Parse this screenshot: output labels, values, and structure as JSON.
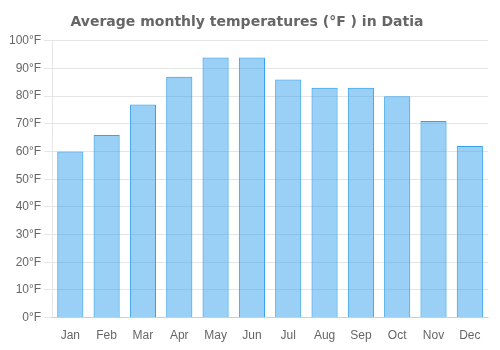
{
  "chart_data": {
    "type": "bar",
    "title": "Average monthly temperatures (°F ) in Datia",
    "categories": [
      "Jan",
      "Feb",
      "Mar",
      "Apr",
      "May",
      "Jun",
      "Jul",
      "Aug",
      "Sep",
      "Oct",
      "Nov",
      "Dec"
    ],
    "values": [
      60,
      66,
      77,
      87,
      94,
      94,
      86,
      83,
      83,
      80,
      71,
      62
    ],
    "ylim": [
      0,
      100
    ],
    "yticks": [
      {
        "value": 0,
        "label": "0°F"
      },
      {
        "value": 10,
        "label": "10°F"
      },
      {
        "value": 20,
        "label": "20°F"
      },
      {
        "value": 30,
        "label": "30°F"
      },
      {
        "value": 40,
        "label": "40°F"
      },
      {
        "value": 50,
        "label": "50°F"
      },
      {
        "value": 60,
        "label": "60°F"
      },
      {
        "value": 70,
        "label": "70°F"
      },
      {
        "value": 80,
        "label": "80°F"
      },
      {
        "value": 90,
        "label": "90°F"
      },
      {
        "value": 100,
        "label": "100°F"
      }
    ],
    "grid": true
  }
}
